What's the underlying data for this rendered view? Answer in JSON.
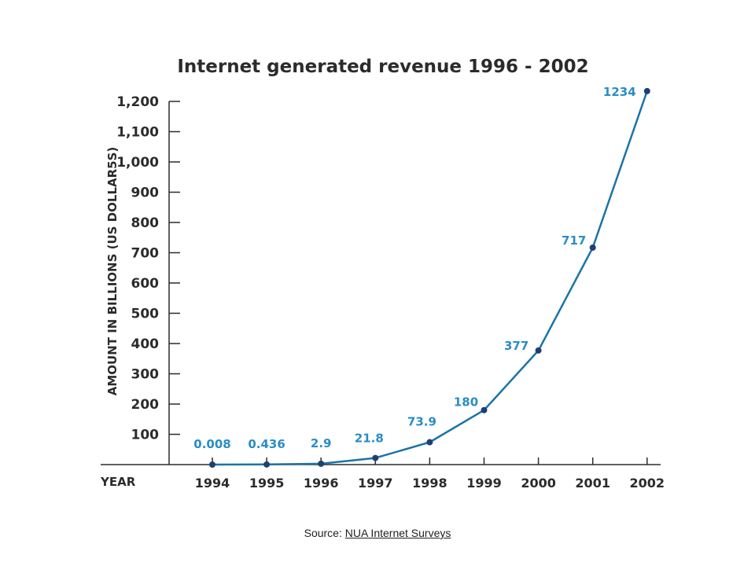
{
  "colors": {
    "line": "#1b74a6",
    "point": "#1f3f73",
    "label": "#2a8dc4",
    "axis": "#2b2b2b"
  },
  "chart_data": {
    "type": "line",
    "title": "Internet generated revenue 1996 - 2002",
    "xlabel": "YEAR",
    "ylabel": "AMOUNT IN BILLIONS (US DOLLAR5S)",
    "categories": [
      "1994",
      "1995",
      "1996",
      "1997",
      "1998",
      "1999",
      "2000",
      "2001",
      "2002"
    ],
    "values": [
      0.008,
      0.436,
      2.9,
      21.8,
      73.9,
      180,
      377,
      717,
      1234
    ],
    "data_labels": [
      "0.008",
      "0.436",
      "2.9",
      "21.8",
      "73.9",
      "180",
      "377",
      "717",
      "1234"
    ],
    "yticks": [
      "100",
      "200",
      "300",
      "400",
      "500",
      "600",
      "700",
      "800",
      "900",
      "1,000",
      "1,100",
      "1,200"
    ],
    "ytick_values": [
      100,
      200,
      300,
      400,
      500,
      600,
      700,
      800,
      900,
      1000,
      1100,
      1200
    ],
    "ylim": [
      0,
      1200
    ],
    "grid": false
  },
  "source": {
    "prefix": "Source: ",
    "link_text": "NUA Internet Surveys"
  }
}
